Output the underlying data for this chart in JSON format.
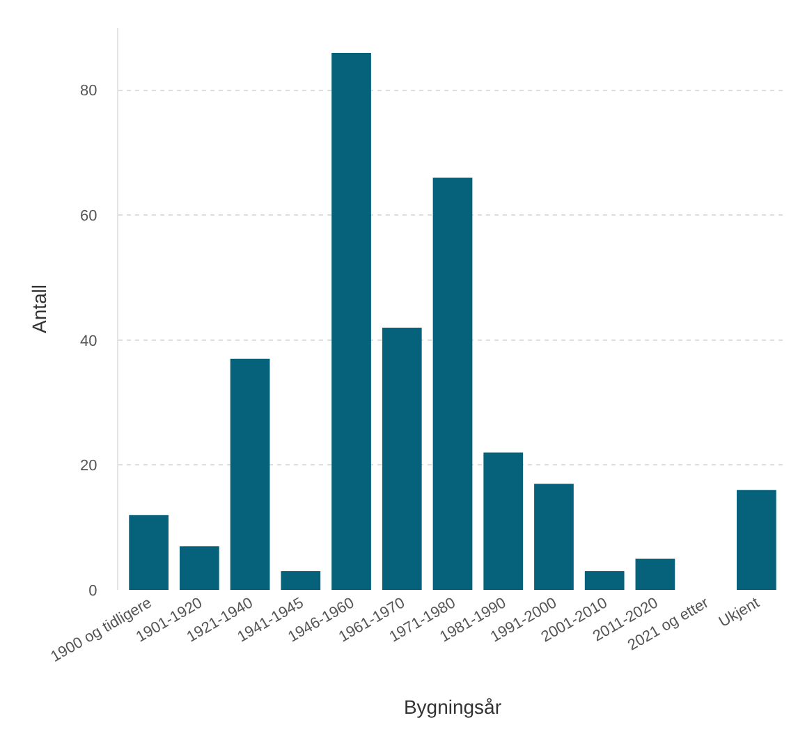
{
  "chart_data": {
    "type": "bar",
    "xlabel": "Bygningsår",
    "ylabel": "Antall",
    "categories": [
      "1900 og tidligere",
      "1901-1920",
      "1921-1940",
      "1941-1945",
      "1946-1960",
      "1961-1970",
      "1971-1980",
      "1981-1990",
      "1991-2000",
      "2001-2010",
      "2011-2020",
      "2021 og etter",
      "Ukjent"
    ],
    "values": [
      12,
      7,
      37,
      3,
      86,
      42,
      66,
      22,
      17,
      3,
      5,
      0,
      16
    ],
    "color": "#05627a",
    "ylim": [
      0,
      90
    ],
    "yticks": [
      0,
      20,
      40,
      60,
      80
    ],
    "grid": "y"
  }
}
